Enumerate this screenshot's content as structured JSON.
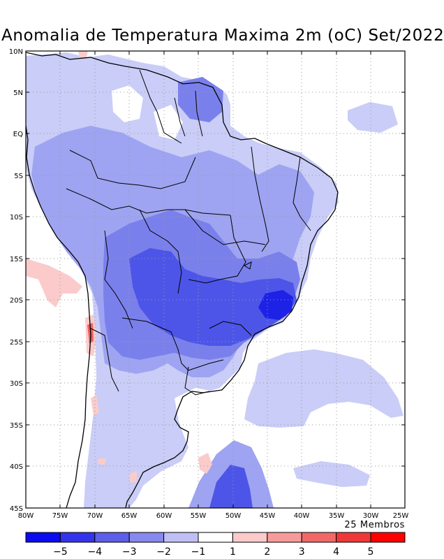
{
  "title": "Anomalia de Temperatura Maxima 2m (oC) Set/2022",
  "members_label": "25 Membros",
  "lat_labels": [
    "10N",
    "5N",
    "EQ",
    "5S",
    "10S",
    "15S",
    "20S",
    "25S",
    "30S",
    "35S",
    "40S",
    "45S"
  ],
  "lon_labels": [
    "80W",
    "75W",
    "70W",
    "65W",
    "60W",
    "55W",
    "50W",
    "45W",
    "40W",
    "35W",
    "30W",
    "25W"
  ],
  "legend": {
    "labels": [
      "−5",
      "−4",
      "−3",
      "−2",
      "−1",
      "1",
      "2",
      "3",
      "4",
      "5"
    ],
    "colors": [
      "#0b0bf0",
      "#3434ec",
      "#5e5eea",
      "#8888ee",
      "#bfbff5",
      "#ffffff",
      "#fccaca",
      "#f79a9a",
      "#f26868",
      "#ef3838",
      "#ff0000"
    ]
  },
  "palette": {
    "neg1": "#c9cdf7",
    "neg2": "#9ea4f1",
    "neg3": "#7a80eb",
    "neg4": "#4d55e8",
    "neg5": "#1d22e6",
    "pos1": "#fbcbcb",
    "pos3": "#f06060"
  }
}
